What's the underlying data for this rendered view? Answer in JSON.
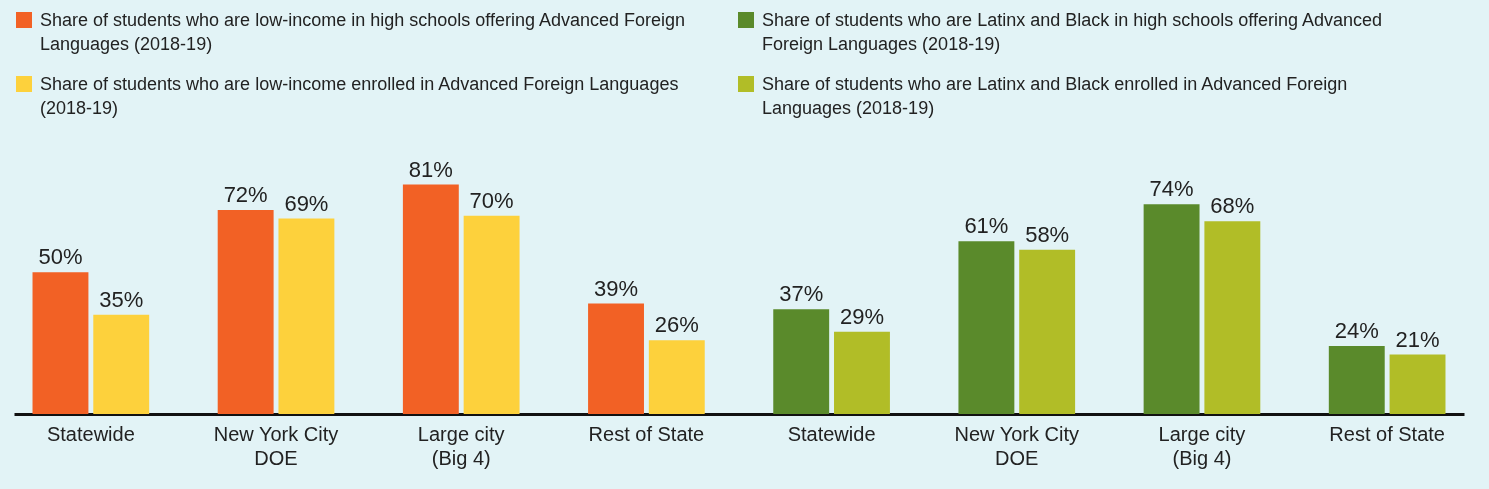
{
  "chart_data": {
    "type": "bar",
    "categories": [
      "Statewide",
      "New York City DOE",
      "Large city (Big 4)",
      "Rest of State",
      "Statewide",
      "New York City DOE",
      "Large city (Big 4)",
      "Rest of State"
    ],
    "series": [
      {
        "name": "Share of students who are low-income in high schools offering Advanced Foreign Languages (2018-19)",
        "color": "#f26125",
        "values": [
          50,
          72,
          81,
          39,
          null,
          null,
          null,
          null
        ],
        "value_labels": [
          "50%",
          "72%",
          "81%",
          "39%",
          null,
          null,
          null,
          null
        ]
      },
      {
        "name": "Share of students who are low-income enrolled in Advanced Foreign Languages (2018-19)",
        "color": "#fdd13c",
        "values": [
          35,
          69,
          70,
          26,
          null,
          null,
          null,
          null
        ],
        "value_labels": [
          "35%",
          "69%",
          "70%",
          "26%",
          null,
          null,
          null,
          null
        ]
      },
      {
        "name": "Share of students who are Latinx and Black in high schools offering Advanced Foreign Languages (2018-19)",
        "color": "#5a8a2b",
        "values": [
          null,
          null,
          null,
          null,
          37,
          61,
          74,
          24
        ],
        "value_labels": [
          null,
          null,
          null,
          null,
          "37%",
          "61%",
          "74%",
          "24%"
        ]
      },
      {
        "name": "Share of students who are Latinx and Black enrolled in Advanced Foreign Languages (2018-19)",
        "color": "#b1bd27",
        "values": [
          null,
          null,
          null,
          null,
          29,
          58,
          68,
          21
        ],
        "value_labels": [
          null,
          null,
          null,
          null,
          "29%",
          "58%",
          "68%",
          "21%"
        ]
      }
    ],
    "legend": "top",
    "grid": false
  }
}
